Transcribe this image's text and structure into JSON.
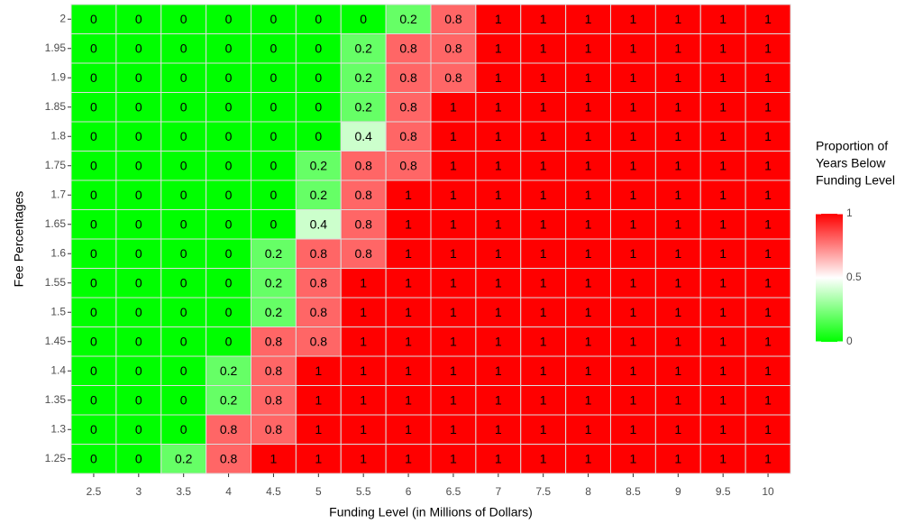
{
  "chart_data": {
    "type": "heatmap",
    "x": [
      2.5,
      3,
      3.5,
      4,
      4.5,
      5,
      5.5,
      6,
      6.5,
      7,
      7.5,
      8,
      8.5,
      9,
      9.5,
      10
    ],
    "y": [
      1.25,
      1.3,
      1.35,
      1.4,
      1.45,
      1.5,
      1.55,
      1.6,
      1.65,
      1.7,
      1.75,
      1.8,
      1.85,
      1.9,
      1.95,
      2
    ],
    "values": [
      [
        0,
        0,
        0.2,
        0.8,
        1,
        1,
        1,
        1,
        1,
        1,
        1,
        1,
        1,
        1,
        1,
        1
      ],
      [
        0,
        0,
        0,
        0.8,
        0.8,
        1,
        1,
        1,
        1,
        1,
        1,
        1,
        1,
        1,
        1,
        1
      ],
      [
        0,
        0,
        0,
        0.2,
        0.8,
        1,
        1,
        1,
        1,
        1,
        1,
        1,
        1,
        1,
        1,
        1
      ],
      [
        0,
        0,
        0,
        0.2,
        0.8,
        1,
        1,
        1,
        1,
        1,
        1,
        1,
        1,
        1,
        1,
        1
      ],
      [
        0,
        0,
        0,
        0,
        0.8,
        0.8,
        1,
        1,
        1,
        1,
        1,
        1,
        1,
        1,
        1,
        1
      ],
      [
        0,
        0,
        0,
        0,
        0.2,
        0.8,
        1,
        1,
        1,
        1,
        1,
        1,
        1,
        1,
        1,
        1
      ],
      [
        0,
        0,
        0,
        0,
        0.2,
        0.8,
        1,
        1,
        1,
        1,
        1,
        1,
        1,
        1,
        1,
        1
      ],
      [
        0,
        0,
        0,
        0,
        0.2,
        0.8,
        0.8,
        1,
        1,
        1,
        1,
        1,
        1,
        1,
        1,
        1
      ],
      [
        0,
        0,
        0,
        0,
        0,
        0.4,
        0.8,
        1,
        1,
        1,
        1,
        1,
        1,
        1,
        1,
        1
      ],
      [
        0,
        0,
        0,
        0,
        0,
        0.2,
        0.8,
        1,
        1,
        1,
        1,
        1,
        1,
        1,
        1,
        1
      ],
      [
        0,
        0,
        0,
        0,
        0,
        0.2,
        0.8,
        0.8,
        1,
        1,
        1,
        1,
        1,
        1,
        1,
        1
      ],
      [
        0,
        0,
        0,
        0,
        0,
        0,
        0.4,
        0.8,
        1,
        1,
        1,
        1,
        1,
        1,
        1,
        1
      ],
      [
        0,
        0,
        0,
        0,
        0,
        0,
        0.2,
        0.8,
        1,
        1,
        1,
        1,
        1,
        1,
        1,
        1
      ],
      [
        0,
        0,
        0,
        0,
        0,
        0,
        0.2,
        0.8,
        0.8,
        1,
        1,
        1,
        1,
        1,
        1,
        1
      ],
      [
        0,
        0,
        0,
        0,
        0,
        0,
        0.2,
        0.8,
        0.8,
        1,
        1,
        1,
        1,
        1,
        1,
        1
      ],
      [
        0,
        0,
        0,
        0,
        0,
        0,
        0,
        0.2,
        0.8,
        1,
        1,
        1,
        1,
        1,
        1,
        1
      ]
    ],
    "x_label": "Funding Level (in Millions of Dollars)",
    "y_label": "Fee Percentages",
    "legend_title": [
      "Proportion of",
      "Years Below",
      "Funding Level"
    ],
    "colors": {
      "low": "#00ff00",
      "mid": "#ffffff",
      "high": "#ff0000"
    },
    "clim": [
      0,
      1
    ],
    "cticks": [
      0,
      0.5,
      1
    ]
  }
}
